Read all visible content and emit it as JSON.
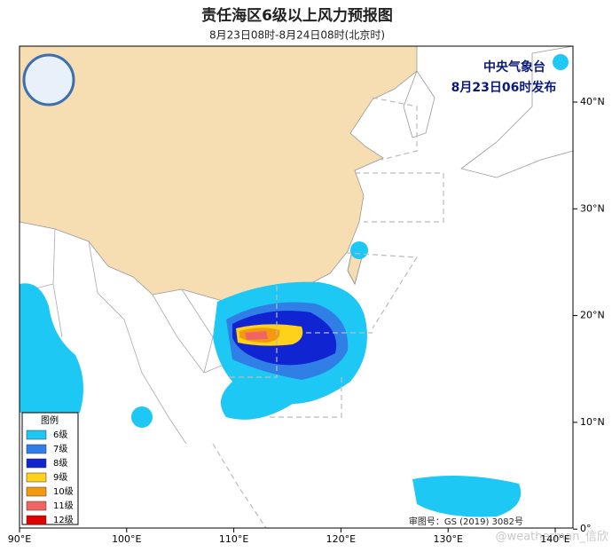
{
  "header": {
    "title": "责任海区6级以上风力预报图",
    "subtitle": "8月23日08时-8月24日08时(北京时)"
  },
  "issuer": {
    "agency": "中央气象台",
    "issued": "8月23日06时发布"
  },
  "legend": {
    "title": "图例",
    "items": [
      {
        "label": "6级",
        "color": "#1ec8f5"
      },
      {
        "label": "7级",
        "color": "#2f7fe6"
      },
      {
        "label": "8级",
        "color": "#1024d2"
      },
      {
        "label": "9级",
        "color": "#ffd21a"
      },
      {
        "label": "10级",
        "color": "#f59a10"
      },
      {
        "label": "11级",
        "color": "#f06464"
      },
      {
        "label": "12级",
        "color": "#e00000"
      }
    ]
  },
  "axes": {
    "x_labels": [
      "90°E",
      "100°E",
      "110°E",
      "120°E",
      "130°E",
      "140°E"
    ],
    "y_labels": [
      "40°N",
      "30°N",
      "20°N",
      "10°N",
      "0°"
    ]
  },
  "map_review": "审图号：GS (2019) 3082号",
  "watermark": "@weatherman_信欣"
}
